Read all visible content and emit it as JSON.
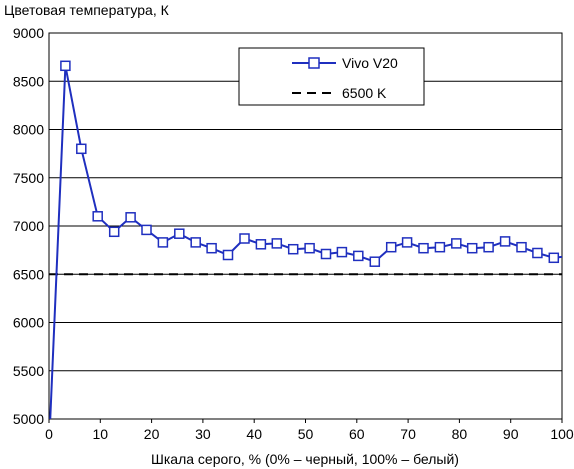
{
  "chart_data": {
    "type": "line",
    "ylabel": "Цветовая температура, К",
    "xlabel": "Шкала серого, % (0% – черный, 100% – белый)",
    "xlim": [
      0,
      100
    ],
    "ylim": [
      5000,
      9000
    ],
    "x_ticks": [
      0,
      10,
      20,
      30,
      40,
      50,
      60,
      70,
      80,
      90,
      100
    ],
    "y_ticks": [
      5000,
      5500,
      6000,
      6500,
      7000,
      7500,
      8000,
      8500,
      9000
    ],
    "grid": "horizontal",
    "legend_position": "top-right",
    "colors": {
      "series": "#1f2fbf",
      "reference": "#000000",
      "grid": "#000000"
    },
    "series": [
      {
        "name": "Vivo V20",
        "marker": "square-open",
        "x": [
          0,
          3.2,
          6.3,
          9.5,
          12.7,
          15.9,
          19.0,
          22.2,
          25.4,
          28.6,
          31.7,
          34.9,
          38.1,
          41.3,
          44.4,
          47.6,
          50.8,
          54.0,
          57.1,
          60.3,
          63.5,
          66.7,
          69.8,
          73.0,
          76.2,
          79.4,
          82.5,
          85.7,
          88.9,
          92.1,
          95.2,
          98.4,
          100
        ],
        "y": [
          4700,
          8660,
          7800,
          7100,
          6940,
          7090,
          6960,
          6830,
          6920,
          6830,
          6770,
          6700,
          6870,
          6810,
          6820,
          6760,
          6770,
          6710,
          6730,
          6690,
          6630,
          6780,
          6830,
          6770,
          6780,
          6820,
          6770,
          6780,
          6840,
          6780,
          6720,
          6670,
          6680
        ],
        "markers_from_index": 1,
        "markers_to_index": 31
      },
      {
        "name": "6500 K",
        "style": "dashed",
        "x": [
          0,
          100
        ],
        "y": [
          6500,
          6500
        ]
      }
    ]
  }
}
